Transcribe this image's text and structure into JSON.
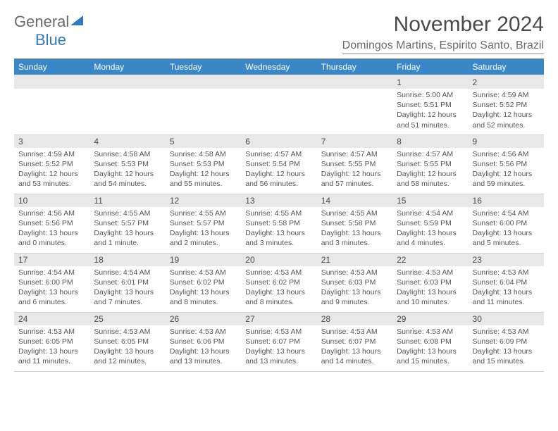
{
  "logo": {
    "word1": "General",
    "word2": "Blue"
  },
  "title": "November 2024",
  "location": "Domingos Martins, Espirito Santo, Brazil",
  "colors": {
    "header_bg": "#3a87c8",
    "header_text": "#ffffff",
    "daynum_bg": "#e8e8e8",
    "logo_accent": "#2f7ac0",
    "text": "#4a4a4a",
    "rule": "#888888"
  },
  "weekdays": [
    "Sunday",
    "Monday",
    "Tuesday",
    "Wednesday",
    "Thursday",
    "Friday",
    "Saturday"
  ],
  "weeks": [
    [
      null,
      null,
      null,
      null,
      null,
      {
        "n": "1",
        "sr": "5:00 AM",
        "ss": "5:51 PM",
        "dl": "12 hours and 51 minutes."
      },
      {
        "n": "2",
        "sr": "4:59 AM",
        "ss": "5:52 PM",
        "dl": "12 hours and 52 minutes."
      }
    ],
    [
      {
        "n": "3",
        "sr": "4:59 AM",
        "ss": "5:52 PM",
        "dl": "12 hours and 53 minutes."
      },
      {
        "n": "4",
        "sr": "4:58 AM",
        "ss": "5:53 PM",
        "dl": "12 hours and 54 minutes."
      },
      {
        "n": "5",
        "sr": "4:58 AM",
        "ss": "5:53 PM",
        "dl": "12 hours and 55 minutes."
      },
      {
        "n": "6",
        "sr": "4:57 AM",
        "ss": "5:54 PM",
        "dl": "12 hours and 56 minutes."
      },
      {
        "n": "7",
        "sr": "4:57 AM",
        "ss": "5:55 PM",
        "dl": "12 hours and 57 minutes."
      },
      {
        "n": "8",
        "sr": "4:57 AM",
        "ss": "5:55 PM",
        "dl": "12 hours and 58 minutes."
      },
      {
        "n": "9",
        "sr": "4:56 AM",
        "ss": "5:56 PM",
        "dl": "12 hours and 59 minutes."
      }
    ],
    [
      {
        "n": "10",
        "sr": "4:56 AM",
        "ss": "5:56 PM",
        "dl": "13 hours and 0 minutes."
      },
      {
        "n": "11",
        "sr": "4:55 AM",
        "ss": "5:57 PM",
        "dl": "13 hours and 1 minute."
      },
      {
        "n": "12",
        "sr": "4:55 AM",
        "ss": "5:57 PM",
        "dl": "13 hours and 2 minutes."
      },
      {
        "n": "13",
        "sr": "4:55 AM",
        "ss": "5:58 PM",
        "dl": "13 hours and 3 minutes."
      },
      {
        "n": "14",
        "sr": "4:55 AM",
        "ss": "5:58 PM",
        "dl": "13 hours and 3 minutes."
      },
      {
        "n": "15",
        "sr": "4:54 AM",
        "ss": "5:59 PM",
        "dl": "13 hours and 4 minutes."
      },
      {
        "n": "16",
        "sr": "4:54 AM",
        "ss": "6:00 PM",
        "dl": "13 hours and 5 minutes."
      }
    ],
    [
      {
        "n": "17",
        "sr": "4:54 AM",
        "ss": "6:00 PM",
        "dl": "13 hours and 6 minutes."
      },
      {
        "n": "18",
        "sr": "4:54 AM",
        "ss": "6:01 PM",
        "dl": "13 hours and 7 minutes."
      },
      {
        "n": "19",
        "sr": "4:53 AM",
        "ss": "6:02 PM",
        "dl": "13 hours and 8 minutes."
      },
      {
        "n": "20",
        "sr": "4:53 AM",
        "ss": "6:02 PM",
        "dl": "13 hours and 8 minutes."
      },
      {
        "n": "21",
        "sr": "4:53 AM",
        "ss": "6:03 PM",
        "dl": "13 hours and 9 minutes."
      },
      {
        "n": "22",
        "sr": "4:53 AM",
        "ss": "6:03 PM",
        "dl": "13 hours and 10 minutes."
      },
      {
        "n": "23",
        "sr": "4:53 AM",
        "ss": "6:04 PM",
        "dl": "13 hours and 11 minutes."
      }
    ],
    [
      {
        "n": "24",
        "sr": "4:53 AM",
        "ss": "6:05 PM",
        "dl": "13 hours and 11 minutes."
      },
      {
        "n": "25",
        "sr": "4:53 AM",
        "ss": "6:05 PM",
        "dl": "13 hours and 12 minutes."
      },
      {
        "n": "26",
        "sr": "4:53 AM",
        "ss": "6:06 PM",
        "dl": "13 hours and 13 minutes."
      },
      {
        "n": "27",
        "sr": "4:53 AM",
        "ss": "6:07 PM",
        "dl": "13 hours and 13 minutes."
      },
      {
        "n": "28",
        "sr": "4:53 AM",
        "ss": "6:07 PM",
        "dl": "13 hours and 14 minutes."
      },
      {
        "n": "29",
        "sr": "4:53 AM",
        "ss": "6:08 PM",
        "dl": "13 hours and 15 minutes."
      },
      {
        "n": "30",
        "sr": "4:53 AM",
        "ss": "6:09 PM",
        "dl": "13 hours and 15 minutes."
      }
    ]
  ],
  "labels": {
    "sunrise": "Sunrise:",
    "sunset": "Sunset:",
    "daylight": "Daylight:"
  }
}
